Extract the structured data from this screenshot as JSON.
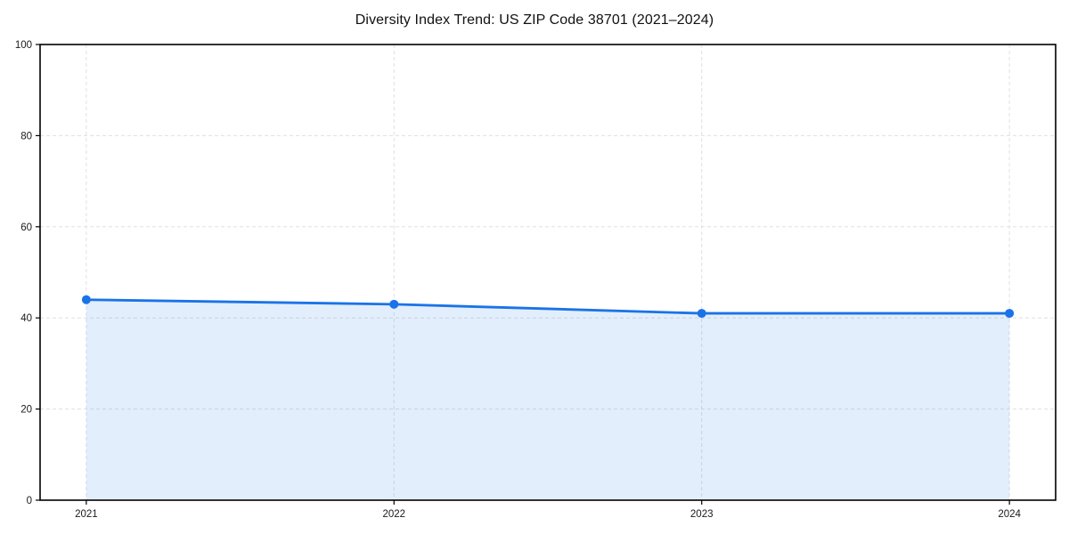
{
  "figure": {
    "background": "#ffffff"
  },
  "chart_data": {
    "type": "line",
    "title": "Diversity Index Trend: US ZIP Code 38701 (2021–2024)",
    "categories": [
      "2021",
      "2022",
      "2023",
      "2024"
    ],
    "series": [
      {
        "name": "Diversity Index",
        "values": [
          44,
          43,
          41,
          41
        ]
      }
    ],
    "xlabel": "",
    "ylabel": "",
    "ylim": [
      0,
      100
    ],
    "yticks": [
      0,
      20,
      40,
      60,
      80,
      100
    ],
    "grid": true,
    "grid_style": "dashed",
    "legend": false,
    "area_fill": true,
    "x_margin_frac": 0.0455,
    "colors": {
      "line": "#1a73e8",
      "marker": "#1a73e8",
      "area": "rgba(26,115,232,0.12)",
      "grid": "#e0e0e0",
      "spine": "#000000",
      "tick_label": "#1a1a1a",
      "title": "#111111"
    }
  }
}
